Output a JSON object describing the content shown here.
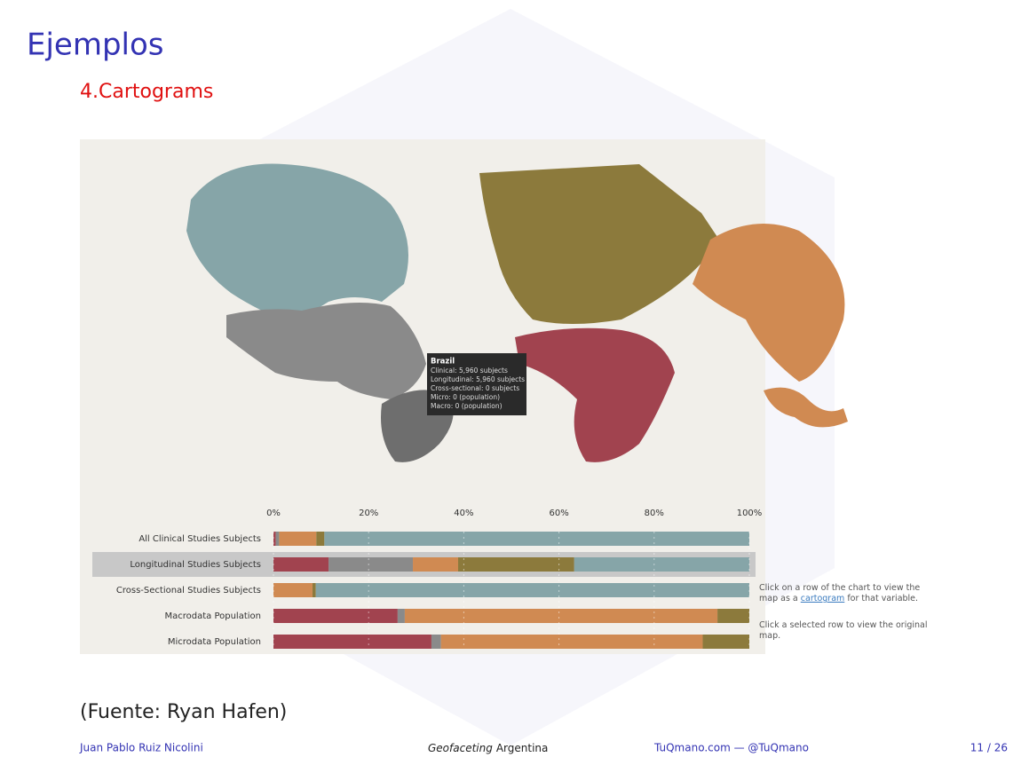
{
  "header": {
    "title": "Ejemplos",
    "subtitle": "4.Cartograms"
  },
  "tooltip": {
    "title": "Brazil",
    "lines": [
      "Clinical: 5,960 subjects",
      "Longitudinal: 5,960 subjects",
      "Cross-sectional: 0 subjects",
      "Micro: 0 (population)",
      "Macro: 0 (population)"
    ]
  },
  "chart_data": {
    "type": "bar",
    "orientation": "horizontal",
    "stacked": true,
    "categories": [
      "All Clinical Studies Subjects",
      "Longitudinal Studies Subjects",
      "Cross-Sectional Studies Subjects",
      "Macrodata Population",
      "Microdata Population"
    ],
    "series": [
      {
        "color": "#a1434f",
        "values": [
          0.5,
          11.6,
          0,
          26.1,
          33.2
        ]
      },
      {
        "color": "#8a8a8a",
        "values": [
          0.7,
          17.7,
          0,
          1.5,
          2.0
        ]
      },
      {
        "color": "#d08a52",
        "values": [
          7.8,
          9.5,
          8.2,
          65.7,
          55.0
        ]
      },
      {
        "color": "#8c7a3c",
        "values": [
          1.7,
          24.4,
          0.7,
          6.7,
          9.8
        ]
      },
      {
        "color": "#86a5a8",
        "values": [
          89.3,
          36.8,
          91.1,
          0,
          0
        ]
      }
    ],
    "xlim": [
      0,
      100
    ],
    "xticks": [
      {
        "value": 0,
        "label": "0%"
      },
      {
        "value": 20,
        "label": "20%"
      },
      {
        "value": 40,
        "label": "40%"
      },
      {
        "value": 60,
        "label": "60%"
      },
      {
        "value": 80,
        "label": "80%"
      },
      {
        "value": 100,
        "label": "100%"
      }
    ]
  },
  "notes": [
    {
      "text": "Click on a row of the chart to view the map as a",
      "link": "cartogram",
      "after": "for that variable."
    },
    {
      "text": "Click a selected row to view the original map."
    }
  ],
  "source": "(Fuente: Ryan Hafen)",
  "footer": {
    "author": "Juan Pablo Ruiz Nicolini",
    "talk_emphasis": "Geofaceting",
    "talk_rest": "Argentina",
    "site": "TuQmano.com — @TuQmano",
    "page": "11 / 26"
  }
}
